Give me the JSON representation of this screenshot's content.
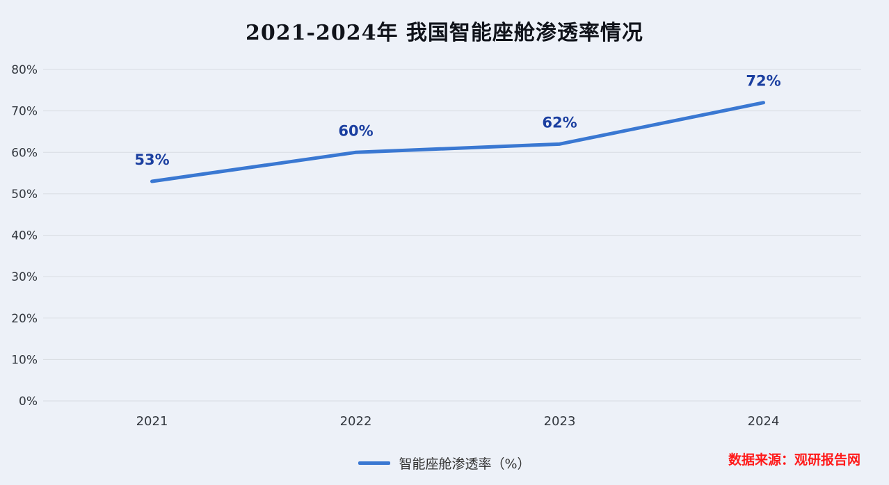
{
  "chart": {
    "title": "2021-2024年 我国智能座舱渗透率情况",
    "legend_label": "智能座舱渗透率（%）",
    "source": "数据来源：观研报告网",
    "colors": {
      "background": "#edf1f8",
      "line": "#3a78d2",
      "data_label": "#1b3fa0",
      "title": "#10131a",
      "source": "#ff1a1a",
      "grid": "#d8dce2",
      "axis_text": "#33383f"
    }
  },
  "chart_data": {
    "type": "line",
    "title": "2021-2024年 我国智能座舱渗透率情况",
    "categories": [
      "2021",
      "2022",
      "2023",
      "2024"
    ],
    "series": [
      {
        "name": "智能座舱渗透率（%）",
        "values": [
          53,
          60,
          62,
          72
        ]
      }
    ],
    "data_labels": [
      "53%",
      "60%",
      "62%",
      "72%"
    ],
    "xlabel": "",
    "ylabel": "",
    "ylim": [
      0,
      80
    ],
    "ytick_step": 10,
    "ytick_labels": [
      "0%",
      "10%",
      "20%",
      "30%",
      "40%",
      "50%",
      "60%",
      "70%",
      "80%"
    ],
    "grid": true,
    "legend_position": "bottom",
    "source_note": "数据来源：观研报告网"
  }
}
